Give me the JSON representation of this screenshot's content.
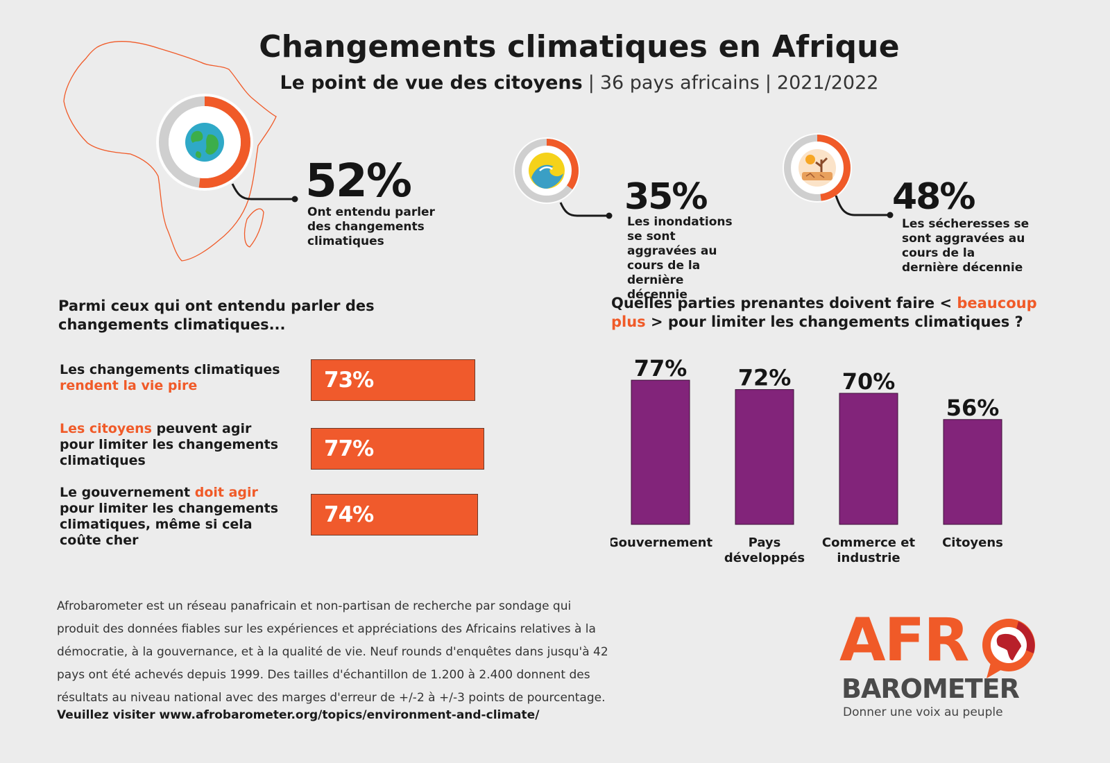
{
  "header": {
    "title": "Changements climatiques en Afrique",
    "subtitle_strong": "Le point de vue des citoyens",
    "subtitle_sep1": "|",
    "subtitle_countries": "36 pays africains",
    "subtitle_sep2": "|",
    "subtitle_years": "2021/2022"
  },
  "stats": [
    {
      "value": "52%",
      "fraction": 0.52,
      "label": "Ont entendu parler des changements climatiques",
      "icon": "globe-icon"
    },
    {
      "value": "35%",
      "fraction": 0.35,
      "label": "Les inondations se sont aggravées au cours de la dernière décennie",
      "icon": "flood-wave-icon"
    },
    {
      "value": "48%",
      "fraction": 0.48,
      "label": "Les sécheresses se sont aggravées au cours de la dernière décennie",
      "icon": "drought-icon"
    }
  ],
  "left_section": {
    "heading": "Parmi ceux qui ont entendu parler des changements climatiques..."
  },
  "right_section": {
    "heading_part1": "Quelles parties prenantes doivent faire < ",
    "heading_accent": "beaucoup plus",
    "heading_part2": " > pour limiter les changements climatiques ?"
  },
  "bar_items": [
    {
      "value_label": "73%",
      "value": 73,
      "label_parts": [
        "Les changements climatiques",
        "rendent la vie pire",
        "",
        ""
      ]
    },
    {
      "value_label": "77%",
      "value": 77,
      "label_parts": [
        "",
        "Les citoyens",
        " peuvent agir pour limiter les changements climatiques",
        ""
      ]
    },
    {
      "value_label": "74%",
      "value": 74,
      "label_parts": [
        "Le gouvernement ",
        "doit agir",
        " pour limiter les changements climatiques, même si cela coûte cher",
        ""
      ]
    }
  ],
  "chart_data": [
    {
      "type": "bar",
      "orientation": "horizontal",
      "categories": [
        "Les changements climatiques rendent la vie pire",
        "Les citoyens peuvent agir pour limiter les changements climatiques",
        "Le gouvernement doit agir pour limiter les changements climatiques, même si cela coûte cher"
      ],
      "values": [
        73,
        77,
        74
      ],
      "unit": "%",
      "title": "Parmi ceux qui ont entendu parler des changements climatiques...",
      "xlim": [
        0,
        100
      ],
      "color": "#f05a2c"
    },
    {
      "type": "bar",
      "orientation": "vertical",
      "categories": [
        "Gouvernement",
        "Pays développés",
        "Commerce et industrie",
        "Citoyens"
      ],
      "values": [
        77,
        72,
        70,
        56
      ],
      "value_labels": [
        "77%",
        "72%",
        "70%",
        "56%"
      ],
      "unit": "%",
      "title": "Quelles parties prenantes doivent faire < beaucoup plus > pour limiter les changements climatiques ?",
      "ylim": [
        0,
        100
      ],
      "color": "#82247a"
    }
  ],
  "footer": {
    "description": "Afrobarometer est un réseau panafricain et non-partisan de recherche par sondage qui produit des données fiables sur les expériences et appréciations des Africains relatives à la démocratie, à la gouvernance, et à la qualité de vie. Neuf rounds d'enquêtes dans jusqu'à 42 pays ont été achevés depuis 1999. Des tailles d'échantillon de 1.200 à 2.400 donnent des résultats au niveau national avec des marges d'erreur de +/-2 à +/-3 points de pourcentage.",
    "link_text": "Veuillez visiter www.afrobarometer.org/topics/environment-and-climate/"
  },
  "logo": {
    "word1": "AFR",
    "word2": "BAROMETER",
    "tagline": "Donner une voix au peuple"
  },
  "colors": {
    "accent_orange": "#f05a28",
    "bar_purple": "#82247a",
    "ring_grey": "#cfcfcf",
    "background": "#ececec"
  }
}
